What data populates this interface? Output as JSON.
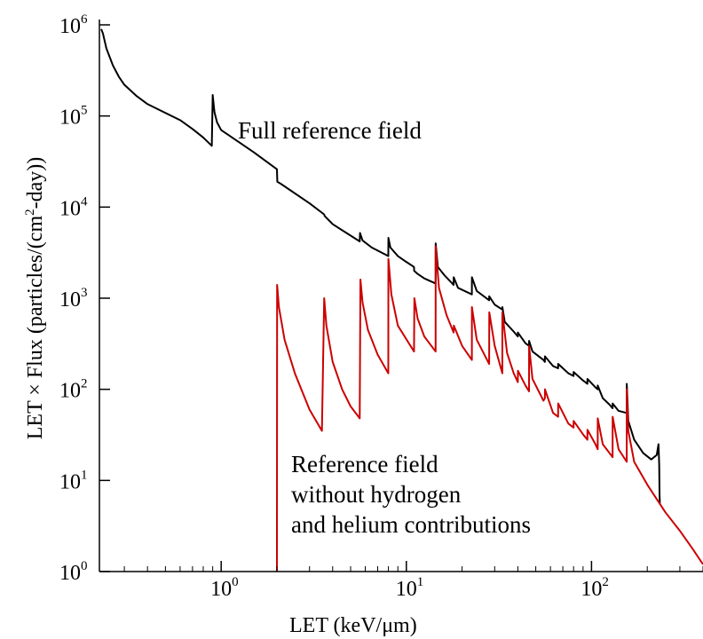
{
  "chart_data": {
    "type": "line",
    "xlabel": "LET (keV/μm)",
    "ylabel_parts": {
      "before": "LET × Flux (particles/(cm",
      "sup": "2",
      "after": "-day))"
    },
    "xscale": "log",
    "yscale": "log",
    "xlim": [
      0.22,
      400
    ],
    "ylim": [
      1,
      1000000
    ],
    "grid": false,
    "x_ticks": [
      {
        "base": "10",
        "exp": "0",
        "value": 1
      },
      {
        "base": "10",
        "exp": "1",
        "value": 10
      },
      {
        "base": "10",
        "exp": "2",
        "value": 100
      }
    ],
    "y_ticks": [
      {
        "base": "10",
        "exp": "0",
        "value": 1
      },
      {
        "base": "10",
        "exp": "1",
        "value": 10
      },
      {
        "base": "10",
        "exp": "2",
        "value": 100
      },
      {
        "base": "10",
        "exp": "3",
        "value": 1000
      },
      {
        "base": "10",
        "exp": "4",
        "value": 10000
      },
      {
        "base": "10",
        "exp": "5",
        "value": 100000
      },
      {
        "base": "10",
        "exp": "6",
        "value": 1000000
      }
    ],
    "annotations": {
      "full": "Full reference field",
      "reduced": [
        "Reference field",
        "without hydrogen",
        "and helium contributions"
      ]
    },
    "series": [
      {
        "label_ref": "full",
        "color": "#000000",
        "points": [
          [
            0.225,
            900000
          ],
          [
            0.23,
            800000
          ],
          [
            0.24,
            550000
          ],
          [
            0.26,
            360000
          ],
          [
            0.28,
            270000
          ],
          [
            0.3,
            220000
          ],
          [
            0.35,
            165000
          ],
          [
            0.4,
            135000
          ],
          [
            0.5,
            108000
          ],
          [
            0.6,
            90000
          ],
          [
            0.7,
            72000
          ],
          [
            0.8,
            58000
          ],
          [
            0.89,
            47000
          ],
          [
            0.9,
            170000
          ],
          [
            0.92,
            110000
          ],
          [
            0.95,
            85000
          ],
          [
            1.0,
            70000
          ],
          [
            1.5,
            40000
          ],
          [
            2.0,
            26000
          ],
          [
            2.01,
            19000
          ],
          [
            2.1,
            18000
          ],
          [
            3.0,
            11000
          ],
          [
            3.6,
            8300
          ],
          [
            3.62,
            8000
          ],
          [
            4.0,
            6500
          ],
          [
            5.6,
            4200
          ],
          [
            5.62,
            5200
          ],
          [
            5.8,
            4300
          ],
          [
            6.5,
            3600
          ],
          [
            7.99,
            2900
          ],
          [
            8.0,
            4600
          ],
          [
            8.2,
            3600
          ],
          [
            9.0,
            2900
          ],
          [
            10.0,
            2500
          ],
          [
            11.0,
            2200
          ],
          [
            11.02,
            2000
          ],
          [
            11.5,
            1850
          ],
          [
            12.5,
            1650
          ],
          [
            14.39,
            1450
          ],
          [
            14.4,
            4000
          ],
          [
            14.8,
            2200
          ],
          [
            16.0,
            1800
          ],
          [
            18.0,
            1400
          ],
          [
            18.02,
            1700
          ],
          [
            19.0,
            1300
          ],
          [
            22.59,
            1100
          ],
          [
            22.6,
            1700
          ],
          [
            24.0,
            1200
          ],
          [
            28.0,
            950
          ],
          [
            28.02,
            1050
          ],
          [
            30.0,
            850
          ],
          [
            32.99,
            750
          ],
          [
            33.0,
            800
          ],
          [
            34.0,
            550
          ],
          [
            38.0,
            430
          ],
          [
            40.0,
            380
          ],
          [
            40.02,
            420
          ],
          [
            44.0,
            320
          ],
          [
            45.99,
            300
          ],
          [
            46.0,
            340
          ],
          [
            48.0,
            260
          ],
          [
            55.0,
            210
          ],
          [
            56.0,
            200
          ],
          [
            56.02,
            230
          ],
          [
            62.0,
            180
          ],
          [
            66.0,
            170
          ],
          [
            66.02,
            190
          ],
          [
            75.0,
            150
          ],
          [
            80.0,
            140
          ],
          [
            80.02,
            155
          ],
          [
            90.0,
            125
          ],
          [
            95.0,
            115
          ],
          [
            95.02,
            130
          ],
          [
            105.0,
            105
          ],
          [
            108.0,
            100
          ],
          [
            108.02,
            110
          ],
          [
            115.0,
            80
          ],
          [
            125.0,
            68
          ],
          [
            130.0,
            62
          ],
          [
            130.02,
            70
          ],
          [
            140.0,
            58
          ],
          [
            154.99,
            55
          ],
          [
            155.0,
            115
          ],
          [
            158.0,
            45
          ],
          [
            170.0,
            28
          ],
          [
            190.0,
            20
          ],
          [
            210.0,
            17
          ],
          [
            225.0,
            19
          ],
          [
            230.0,
            25
          ],
          [
            232.0,
            15
          ],
          [
            233.0,
            7
          ],
          [
            234.0,
            5.5
          ]
        ]
      },
      {
        "label_ref": "reduced",
        "color": "#cc0000",
        "points": [
          [
            2.0,
            1
          ],
          [
            2.005,
            1400
          ],
          [
            2.05,
            800
          ],
          [
            2.2,
            350
          ],
          [
            2.5,
            150
          ],
          [
            3.0,
            60
          ],
          [
            3.5,
            35
          ],
          [
            3.6,
            1000
          ],
          [
            3.7,
            500
          ],
          [
            4.0,
            200
          ],
          [
            4.5,
            100
          ],
          [
            5.0,
            65
          ],
          [
            5.6,
            48
          ],
          [
            5.65,
            1600
          ],
          [
            5.8,
            900
          ],
          [
            6.2,
            450
          ],
          [
            7.0,
            240
          ],
          [
            7.99,
            150
          ],
          [
            8.0,
            2700
          ],
          [
            8.3,
            1100
          ],
          [
            9.0,
            500
          ],
          [
            11.0,
            260
          ],
          [
            11.05,
            1000
          ],
          [
            11.5,
            600
          ],
          [
            12.5,
            380
          ],
          [
            14.39,
            260
          ],
          [
            14.4,
            3700
          ],
          [
            15.0,
            1300
          ],
          [
            16.5,
            650
          ],
          [
            18.0,
            420
          ],
          [
            18.05,
            500
          ],
          [
            20.0,
            300
          ],
          [
            22.59,
            210
          ],
          [
            22.6,
            800
          ],
          [
            24.0,
            350
          ],
          [
            28.0,
            190
          ],
          [
            28.05,
            700
          ],
          [
            30.0,
            300
          ],
          [
            32.99,
            150
          ],
          [
            33.0,
            700
          ],
          [
            35.0,
            250
          ],
          [
            38.0,
            150
          ],
          [
            40.0,
            120
          ],
          [
            40.05,
            160
          ],
          [
            44.0,
            110
          ],
          [
            45.99,
            95
          ],
          [
            46.0,
            300
          ],
          [
            48.0,
            130
          ],
          [
            55.0,
            75
          ],
          [
            56.0,
            80
          ],
          [
            56.05,
            100
          ],
          [
            62.0,
            55
          ],
          [
            66.0,
            50
          ],
          [
            66.05,
            70
          ],
          [
            75.0,
            42
          ],
          [
            80.0,
            38
          ],
          [
            80.05,
            45
          ],
          [
            90.0,
            32
          ],
          [
            95.0,
            28
          ],
          [
            95.05,
            36
          ],
          [
            105.0,
            25
          ],
          [
            108.0,
            22
          ],
          [
            108.05,
            48
          ],
          [
            115.0,
            25
          ],
          [
            125.0,
            20
          ],
          [
            130.0,
            18
          ],
          [
            130.05,
            50
          ],
          [
            140.0,
            22
          ],
          [
            154.99,
            16
          ],
          [
            155.0,
            100
          ],
          [
            158.0,
            35
          ],
          [
            170.0,
            16
          ],
          [
            200.0,
            9
          ],
          [
            250.0,
            4.5
          ],
          [
            300.0,
            2.8
          ],
          [
            350.0,
            1.8
          ],
          [
            400.0,
            1.2
          ]
        ]
      }
    ]
  }
}
